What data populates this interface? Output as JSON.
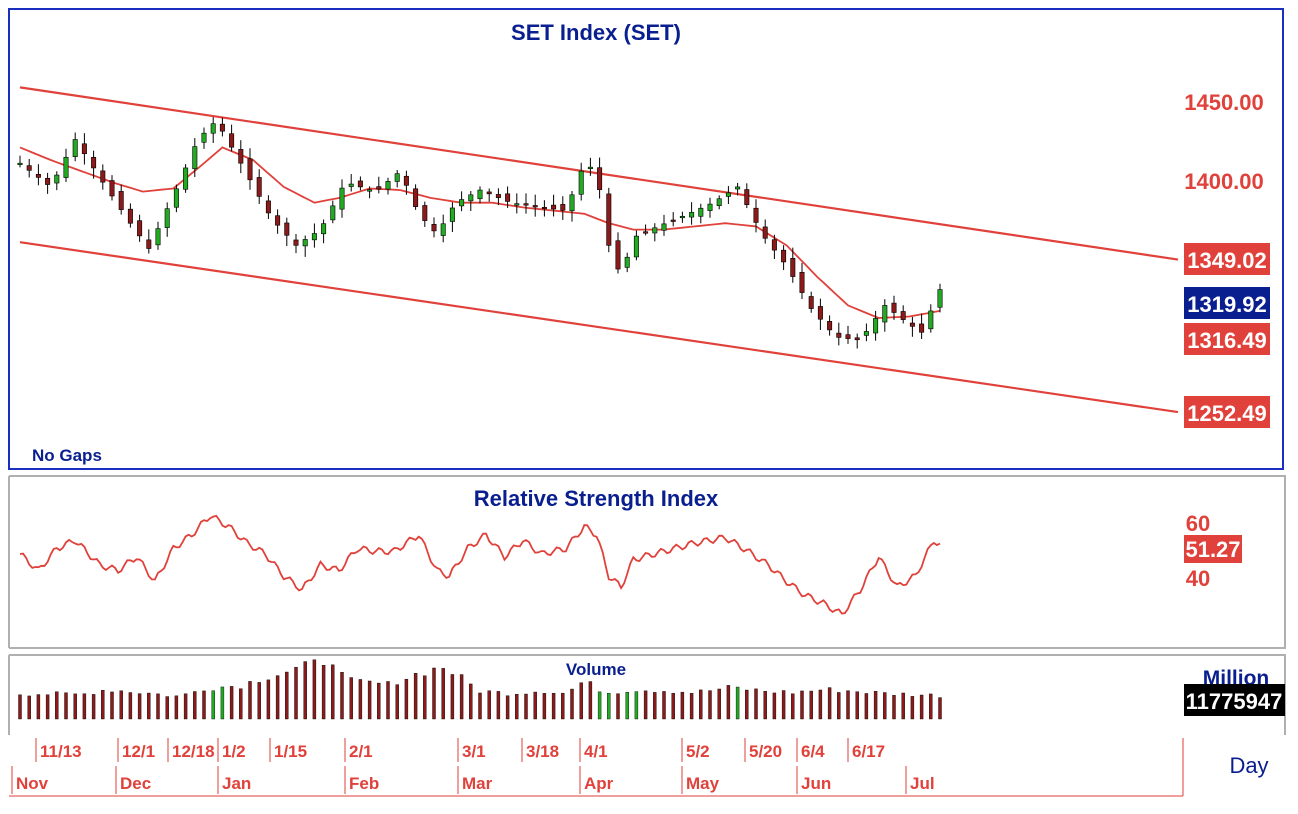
{
  "panels": {
    "price_title": "SET Index (SET)",
    "gap_note": "No Gaps",
    "rsi_title": "Relative Strength Index",
    "volume_title": "Volume",
    "volume_unit": "Million",
    "period": "Day"
  },
  "price_axis": {
    "ticks": [
      "1450.00",
      "1400.00"
    ],
    "tags": [
      {
        "label": "1349.02",
        "kind": "channel-upper"
      },
      {
        "label": "1319.92",
        "kind": "last-price"
      },
      {
        "label": "1316.49",
        "kind": "moving-average"
      },
      {
        "label": "1252.49",
        "kind": "channel-lower"
      }
    ]
  },
  "rsi_axis": {
    "ticks": [
      "60",
      "40"
    ],
    "tag": "51.27"
  },
  "volume_axis": {
    "tag": "11775947"
  },
  "date_axis": {
    "top": [
      "11/13",
      "12/1",
      "12/18",
      "1/2",
      "1/15",
      "2/1",
      "3/1",
      "3/18",
      "4/1",
      "5/2",
      "5/20",
      "6/4",
      "6/17"
    ],
    "bottom": [
      "Nov",
      "Dec",
      "Jan",
      "Feb",
      "Mar",
      "Apr",
      "May",
      "Jun",
      "Jul"
    ]
  },
  "colors": {
    "frame": "#1a2fbf",
    "series": "#e0413a",
    "up": "#22aa22",
    "down": "#8b1a1a",
    "title": "#0a1f8f",
    "last_tag": "#0a1f8f"
  },
  "chart_data": {
    "type": "candlestick",
    "title": "SET Index (SET)",
    "x_range": [
      "Nov",
      "Jul"
    ],
    "ylim": [
      1230,
      1480
    ],
    "price_anchor": [
      [
        0,
        1410
      ],
      [
        10,
        1395
      ],
      [
        18,
        1425
      ],
      [
        28,
        1395
      ],
      [
        36,
        1372
      ],
      [
        42,
        1356
      ],
      [
        52,
        1398
      ],
      [
        58,
        1425
      ],
      [
        64,
        1437
      ],
      [
        72,
        1410
      ],
      [
        82,
        1375
      ],
      [
        90,
        1358
      ],
      [
        98,
        1368
      ],
      [
        106,
        1398
      ],
      [
        116,
        1392
      ],
      [
        124,
        1405
      ],
      [
        130,
        1378
      ],
      [
        136,
        1365
      ],
      [
        142,
        1385
      ],
      [
        150,
        1393
      ],
      [
        160,
        1385
      ],
      [
        170,
        1382
      ],
      [
        178,
        1380
      ],
      [
        184,
        1410
      ],
      [
        188,
        1405
      ],
      [
        192,
        1358
      ],
      [
        196,
        1338
      ],
      [
        200,
        1363
      ],
      [
        208,
        1370
      ],
      [
        218,
        1378
      ],
      [
        226,
        1385
      ],
      [
        234,
        1395
      ],
      [
        242,
        1365
      ],
      [
        250,
        1345
      ],
      [
        258,
        1318
      ],
      [
        266,
        1300
      ],
      [
        274,
        1298
      ],
      [
        282,
        1320
      ],
      [
        290,
        1308
      ],
      [
        294,
        1303
      ],
      [
        300,
        1330
      ]
    ],
    "moving_average_anchor": [
      [
        0,
        1420
      ],
      [
        10,
        1412
      ],
      [
        20,
        1405
      ],
      [
        30,
        1398
      ],
      [
        40,
        1392
      ],
      [
        50,
        1394
      ],
      [
        60,
        1410
      ],
      [
        66,
        1420
      ],
      [
        76,
        1412
      ],
      [
        86,
        1395
      ],
      [
        96,
        1385
      ],
      [
        104,
        1388
      ],
      [
        114,
        1394
      ],
      [
        124,
        1393
      ],
      [
        134,
        1388
      ],
      [
        144,
        1385
      ],
      [
        154,
        1385
      ],
      [
        164,
        1382
      ],
      [
        174,
        1380
      ],
      [
        184,
        1378
      ],
      [
        192,
        1372
      ],
      [
        200,
        1368
      ],
      [
        210,
        1368
      ],
      [
        220,
        1370
      ],
      [
        230,
        1372
      ],
      [
        240,
        1370
      ],
      [
        250,
        1358
      ],
      [
        260,
        1338
      ],
      [
        270,
        1320
      ],
      [
        280,
        1312
      ],
      [
        290,
        1313
      ],
      [
        300,
        1316.49
      ]
    ],
    "trend_channel": {
      "upper": {
        "start": 1458,
        "end": 1349.02
      },
      "lower": {
        "start": 1360,
        "end": 1252.49
      }
    },
    "last": 1319.92,
    "moving_average_last": 1316.49,
    "rsi": {
      "ylim": [
        20,
        80
      ],
      "last": 51.27,
      "anchor": [
        [
          0,
          48
        ],
        [
          6,
          42
        ],
        [
          12,
          50
        ],
        [
          18,
          53
        ],
        [
          26,
          44
        ],
        [
          32,
          42
        ],
        [
          38,
          47
        ],
        [
          44,
          38
        ],
        [
          50,
          50
        ],
        [
          56,
          55
        ],
        [
          62,
          62
        ],
        [
          68,
          58
        ],
        [
          74,
          52
        ],
        [
          80,
          48
        ],
        [
          86,
          40
        ],
        [
          92,
          35
        ],
        [
          98,
          44
        ],
        [
          104,
          42
        ],
        [
          110,
          50
        ],
        [
          116,
          49
        ],
        [
          122,
          49
        ],
        [
          130,
          55
        ],
        [
          136,
          42
        ],
        [
          140,
          40
        ],
        [
          146,
          50
        ],
        [
          152,
          55
        ],
        [
          158,
          47
        ],
        [
          164,
          53
        ],
        [
          170,
          48
        ],
        [
          178,
          50
        ],
        [
          184,
          58
        ],
        [
          188,
          55
        ],
        [
          192,
          40
        ],
        [
          196,
          36
        ],
        [
          200,
          46
        ],
        [
          210,
          49
        ],
        [
          220,
          52
        ],
        [
          230,
          54
        ],
        [
          236,
          50
        ],
        [
          244,
          44
        ],
        [
          250,
          38
        ],
        [
          256,
          33
        ],
        [
          262,
          30
        ],
        [
          268,
          26
        ],
        [
          274,
          35
        ],
        [
          280,
          47
        ],
        [
          286,
          36
        ],
        [
          292,
          40
        ],
        [
          298,
          53
        ],
        [
          300,
          51.27
        ]
      ]
    },
    "volume": {
      "last": 11775947,
      "ylim": [
        0,
        140
      ],
      "anchor": [
        [
          0,
          50
        ],
        [
          20,
          48
        ],
        [
          28,
          58
        ],
        [
          40,
          52
        ],
        [
          52,
          44
        ],
        [
          60,
          60
        ],
        [
          72,
          66
        ],
        [
          80,
          82
        ],
        [
          88,
          95
        ],
        [
          96,
          108
        ],
        [
          102,
          118
        ],
        [
          106,
          75
        ],
        [
          120,
          68
        ],
        [
          130,
          90
        ],
        [
          138,
          102
        ],
        [
          144,
          80
        ],
        [
          150,
          55
        ],
        [
          160,
          50
        ],
        [
          170,
          56
        ],
        [
          178,
          50
        ],
        [
          184,
          75
        ],
        [
          188,
          60
        ],
        [
          192,
          52
        ],
        [
          200,
          58
        ],
        [
          210,
          56
        ],
        [
          220,
          52
        ],
        [
          232,
          62
        ],
        [
          242,
          55
        ],
        [
          252,
          52
        ],
        [
          262,
          58
        ],
        [
          272,
          55
        ],
        [
          282,
          50
        ],
        [
          292,
          48
        ],
        [
          300,
          46
        ]
      ],
      "green_ranges": [
        [
          62,
          67
        ],
        [
          188,
          192
        ],
        [
          198,
          201
        ],
        [
          232,
          236
        ]
      ]
    }
  }
}
